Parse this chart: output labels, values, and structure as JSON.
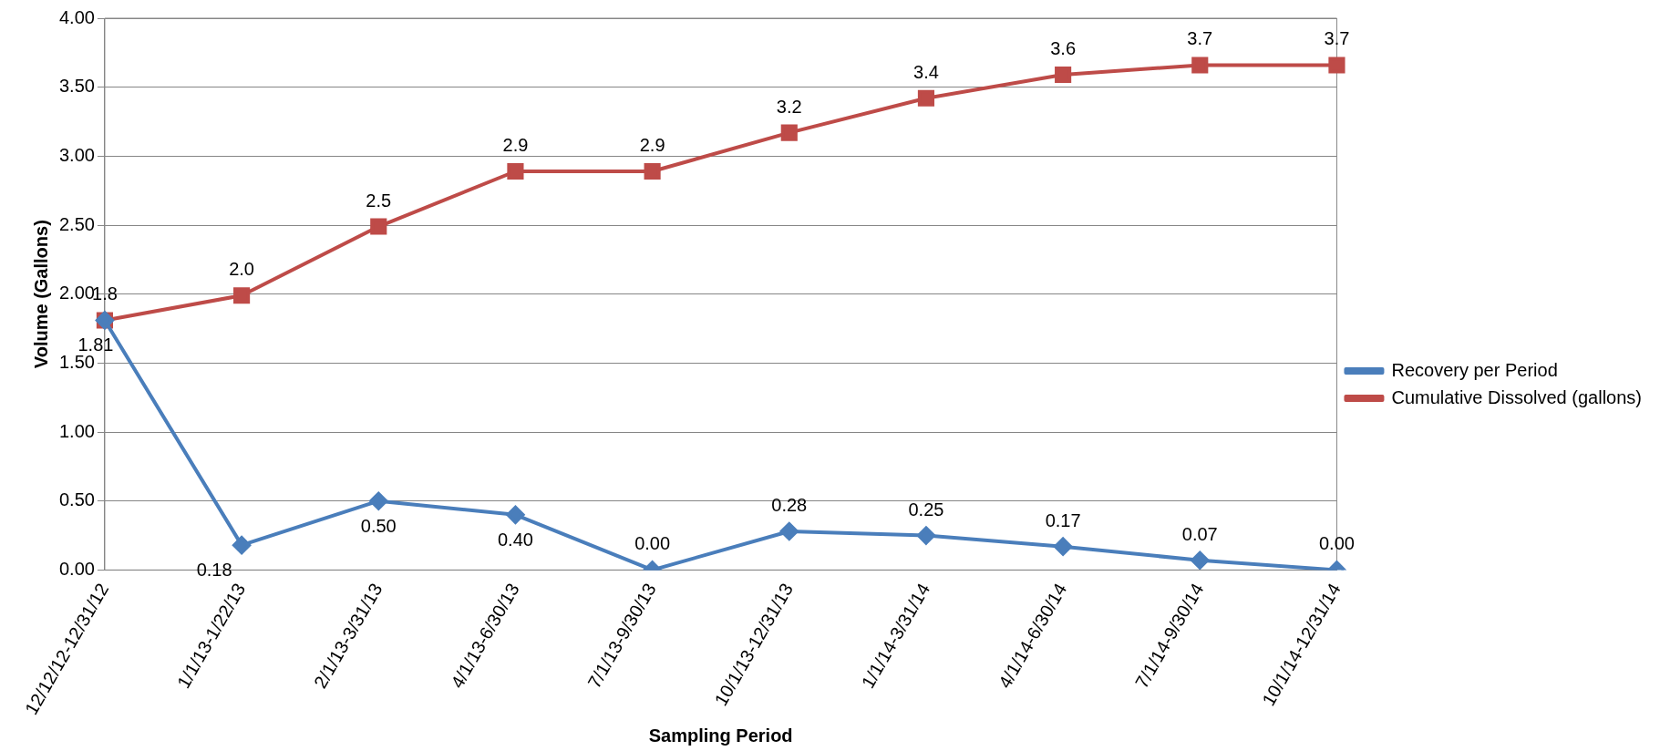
{
  "chart_data": {
    "type": "line",
    "xlabel": "Sampling Period",
    "ylabel": "Volume (Gallons)",
    "categories": [
      "12/12/12-12/31/12",
      "1/1/13-1/22/13",
      "2/1/13-3/31/13",
      "4/1/13-6/30/13",
      "7/1/13-9/30/13",
      "10/1/13-12/31/13",
      "1/1/14-3/31/14",
      "4/1/14-6/30/14",
      "7/1/14-9/30/14",
      "10/1/14-12/31/14"
    ],
    "series": [
      {
        "name": "Recovery per Period",
        "color": "#4a7ebb",
        "marker": "diamond",
        "values": [
          1.81,
          0.18,
          0.5,
          0.4,
          0.0,
          0.28,
          0.25,
          0.17,
          0.07,
          0.0
        ],
        "value_labels": [
          "1.81",
          "0.18",
          "0.50",
          "0.40",
          "0.00",
          "0.28",
          "0.25",
          "0.17",
          "0.07",
          "0.00"
        ]
      },
      {
        "name": "Cumulative Dissolved (gallons)",
        "color": "#be4b48",
        "marker": "square",
        "values": [
          1.81,
          1.99,
          2.49,
          2.89,
          2.89,
          3.17,
          3.42,
          3.59,
          3.66,
          3.66
        ],
        "value_labels": [
          "1.8",
          "2.0",
          "2.5",
          "2.9",
          "2.9",
          "3.2",
          "3.4",
          "3.6",
          "3.7",
          "3.7"
        ]
      }
    ],
    "ylim": [
      0,
      4
    ],
    "yticks": [
      {
        "value": 0,
        "label": "0.00"
      },
      {
        "value": 0.5,
        "label": "0.50"
      },
      {
        "value": 1,
        "label": "1.00"
      },
      {
        "value": 1.5,
        "label": "1.50"
      },
      {
        "value": 2,
        "label": "2.00"
      },
      {
        "value": 2.5,
        "label": "2.50"
      },
      {
        "value": 3,
        "label": "3.00"
      },
      {
        "value": 3.5,
        "label": "3.50"
      },
      {
        "value": 4,
        "label": "4.00"
      }
    ],
    "grid": "y",
    "legend": "right",
    "line_style": "solid"
  }
}
